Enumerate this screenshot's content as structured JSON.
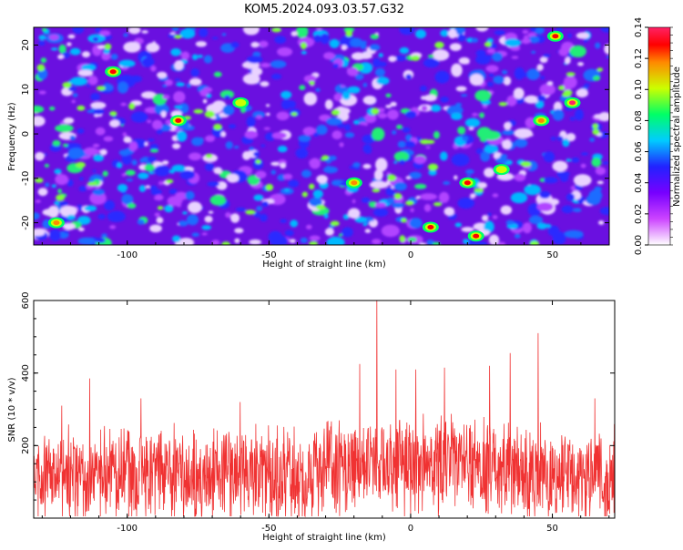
{
  "title": "KOM5.2024.093.03.57.G32",
  "top_panel": {
    "xlabel": "Height of straight line (km)",
    "ylabel": "Frequency (Hz)",
    "colorbar_label": "Normalized spectral amplitude"
  },
  "bottom_panel": {
    "xlabel": "Height of straight line (km)",
    "ylabel": "SNR (10 * v/v)"
  },
  "colors": {
    "snr_line": "#f03232",
    "frame": "#000000"
  },
  "chart_data": [
    {
      "type": "heatmap",
      "xlabel": "Height of straight line (km)",
      "ylabel": "Frequency (Hz)",
      "xlim": [
        -133,
        70
      ],
      "ylim": [
        -25,
        24
      ],
      "x_ticks": [
        -100,
        -50,
        0,
        50
      ],
      "y_ticks": [
        -20,
        -10,
        0,
        10,
        20
      ],
      "colorbar": {
        "label": "Normalized spectral amplitude",
        "range": [
          0,
          0.14
        ],
        "ticks": [
          "0.00",
          "0.02",
          "0.04",
          "0.06",
          "0.08",
          "0.10",
          "0.12",
          "0.14"
        ],
        "colormap": [
          "#ffffff",
          "#cc44ff",
          "#7700ff",
          "#2222ff",
          "#00ccff",
          "#00ff66",
          "#ccff00",
          "#ff8800",
          "#ff0000",
          "#ff2266"
        ]
      },
      "peaks": [
        {
          "x": -105,
          "y": 14,
          "value": 0.13
        },
        {
          "x": -82,
          "y": 3,
          "value": 0.12
        },
        {
          "x": 57,
          "y": 7,
          "value": 0.14
        },
        {
          "x": 51,
          "y": 22,
          "value": 0.13
        },
        {
          "x": 23,
          "y": -23,
          "value": 0.13
        },
        {
          "x": 7,
          "y": -21,
          "value": 0.12
        },
        {
          "x": -20,
          "y": -11,
          "value": 0.11
        },
        {
          "x": 20,
          "y": -11,
          "value": 0.12
        },
        {
          "x": -125,
          "y": -20,
          "value": 0.11
        },
        {
          "x": 46,
          "y": 3,
          "value": 0.11
        },
        {
          "x": 32,
          "y": -8,
          "value": 0.1
        },
        {
          "x": -60,
          "y": 7,
          "value": 0.1
        }
      ]
    },
    {
      "type": "line",
      "xlabel": "Height of straight line (km)",
      "ylabel": "SNR (10 * v/v)",
      "xlim": [
        -133,
        72
      ],
      "ylim": [
        0,
        600
      ],
      "x_ticks": [
        -100,
        -50,
        0,
        50
      ],
      "y_ticks": [
        200,
        400,
        600
      ],
      "baseline_mean": 120,
      "spikes": [
        {
          "x": -123,
          "y": 310
        },
        {
          "x": -113,
          "y": 385
        },
        {
          "x": -95,
          "y": 330
        },
        {
          "x": -60,
          "y": 320
        },
        {
          "x": -18,
          "y": 425
        },
        {
          "x": -12,
          "y": 610
        },
        {
          "x": -5,
          "y": 410
        },
        {
          "x": 2,
          "y": 410
        },
        {
          "x": 12,
          "y": 415
        },
        {
          "x": 28,
          "y": 420
        },
        {
          "x": 35,
          "y": 455
        },
        {
          "x": 45,
          "y": 510
        },
        {
          "x": 65,
          "y": 330
        }
      ]
    }
  ]
}
